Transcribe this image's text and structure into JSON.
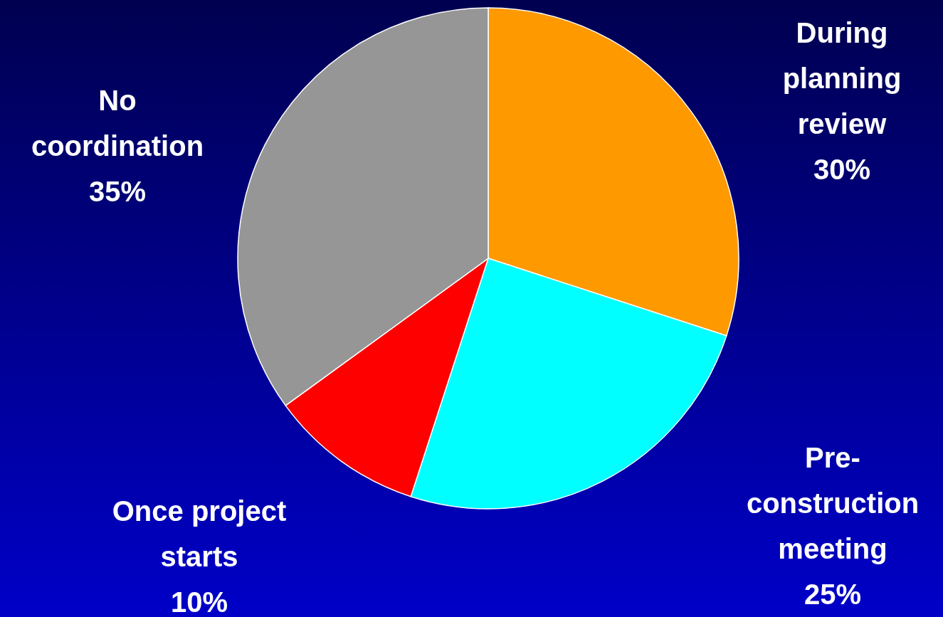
{
  "chart_data": {
    "type": "pie",
    "categories": [
      "During planning review",
      "Pre-construction meeting",
      "Once project starts",
      "No coordination"
    ],
    "values": [
      30,
      25,
      10,
      35
    ],
    "colors": [
      "#ff9900",
      "#00ffff",
      "#ff0000",
      "#969696"
    ],
    "value_labels": [
      "30%",
      "25%",
      "10%",
      "35%"
    ]
  }
}
